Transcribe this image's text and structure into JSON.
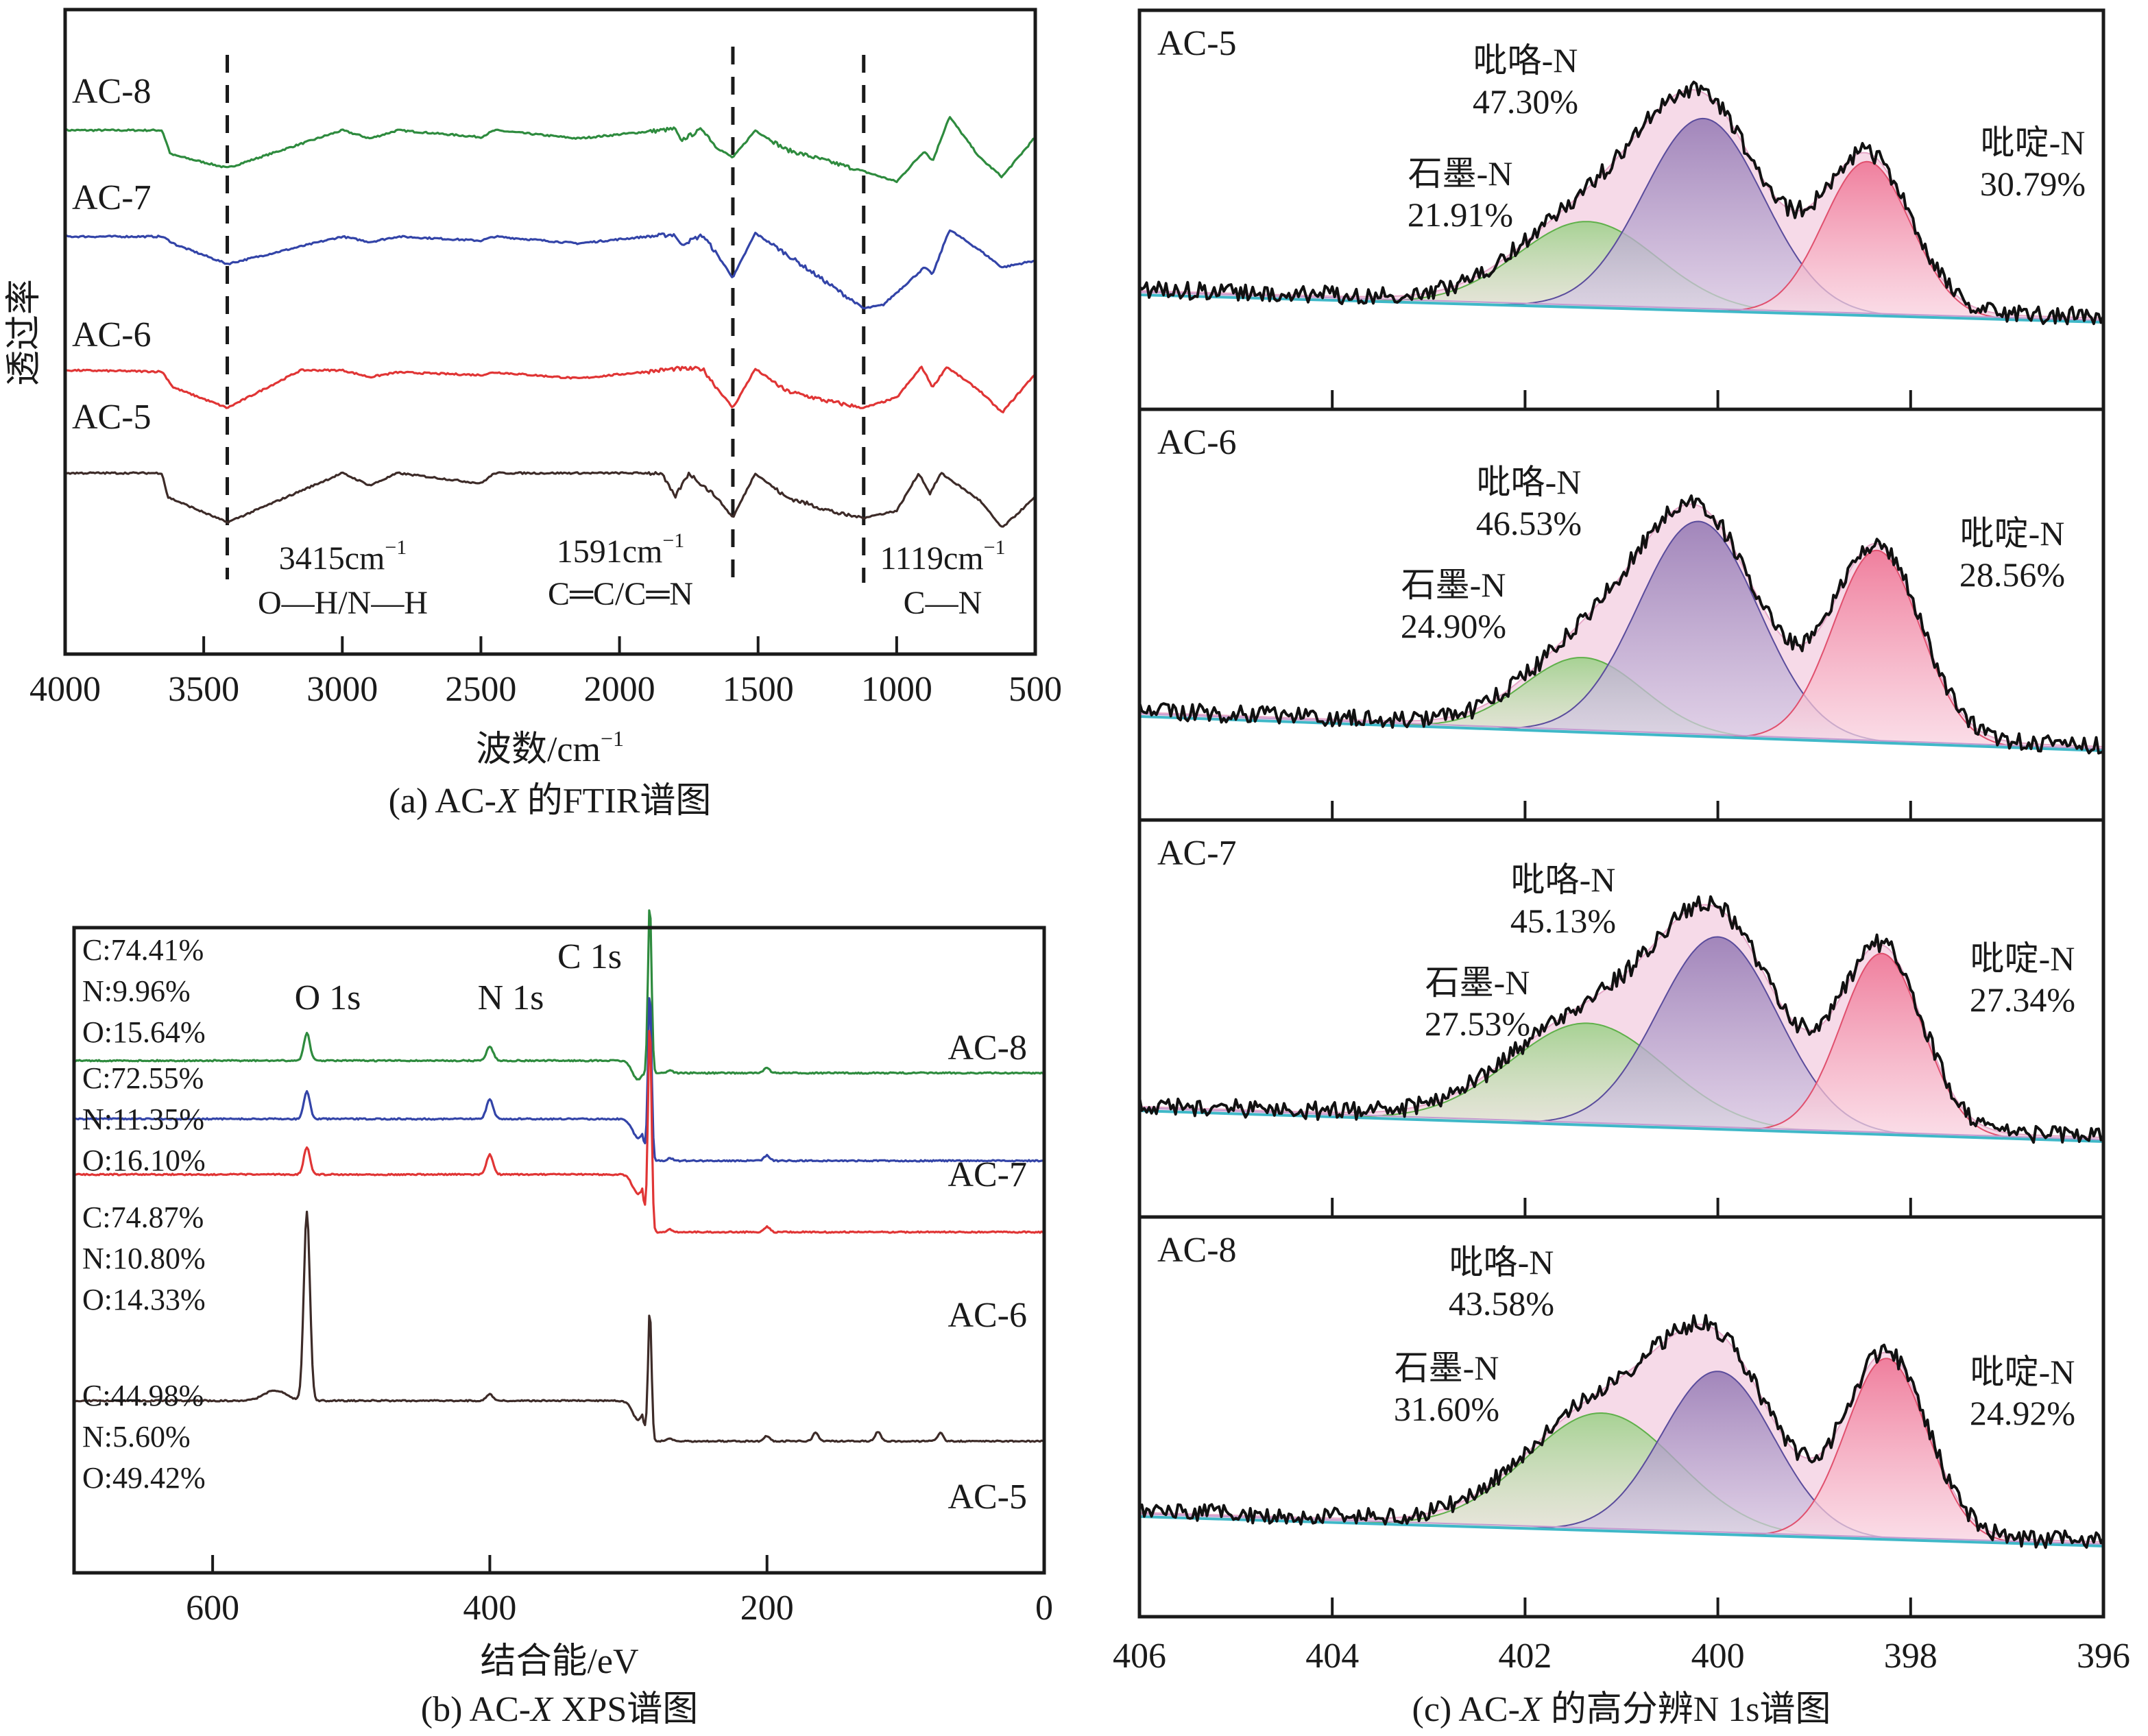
{
  "chart_data": [
    {
      "id": "ftir",
      "type": "line",
      "title": "(a) AC-X 的FTIR谱图",
      "caption_prefix": "(a) AC-",
      "caption_italic": "X",
      "caption_suffix": " 的FTIR谱图",
      "xlabel": "波数/cm",
      "xlabel_sup": "−1",
      "ylabel": "透过率",
      "xlim": [
        4000,
        500
      ],
      "xticks": [
        4000,
        3500,
        3000,
        2500,
        2000,
        1500,
        1000,
        500
      ],
      "grid": false,
      "annotations": [
        {
          "x": 3415,
          "label": "3415cm",
          "sup": "−1",
          "bond": "O—H/N—H"
        },
        {
          "x": 1591,
          "label": "1591cm",
          "sup": "−1",
          "bond": "C═C/C═N"
        },
        {
          "x": 1119,
          "label": "1119cm",
          "sup": "−1",
          "bond": "C—N"
        }
      ],
      "series": [
        {
          "name": "AC-8",
          "color": "#2e8b3e",
          "offset": 3.0,
          "points": [
            [
              4000,
              0
            ],
            [
              3650,
              0
            ],
            [
              3620,
              -0.35
            ],
            [
              3415,
              -0.55
            ],
            [
              3000,
              0
            ],
            [
              2900,
              -0.12
            ],
            [
              2800,
              0
            ],
            [
              2500,
              -0.1
            ],
            [
              2450,
              0
            ],
            [
              2150,
              -0.12
            ],
            [
              1900,
              -0.02
            ],
            [
              1800,
              0.02
            ],
            [
              1780,
              -0.15
            ],
            [
              1700,
              0.02
            ],
            [
              1650,
              -0.25
            ],
            [
              1591,
              -0.4
            ],
            [
              1510,
              0.0
            ],
            [
              1400,
              -0.28
            ],
            [
              1250,
              -0.45
            ],
            [
              1119,
              -0.6
            ],
            [
              1000,
              -0.75
            ],
            [
              900,
              -0.3
            ],
            [
              870,
              -0.45
            ],
            [
              810,
              0.2
            ],
            [
              700,
              -0.4
            ],
            [
              620,
              -0.68
            ],
            [
              500,
              -0.1
            ]
          ]
        },
        {
          "name": "AC-7",
          "color": "#3344a8",
          "offset": 2.0,
          "points": [
            [
              4000,
              0
            ],
            [
              3650,
              0
            ],
            [
              3600,
              -0.12
            ],
            [
              3415,
              -0.4
            ],
            [
              3000,
              0
            ],
            [
              2900,
              -0.08
            ],
            [
              2800,
              0
            ],
            [
              2500,
              -0.06
            ],
            [
              2450,
              0
            ],
            [
              2150,
              -0.1
            ],
            [
              1900,
              0
            ],
            [
              1800,
              0.03
            ],
            [
              1780,
              -0.12
            ],
            [
              1700,
              0.02
            ],
            [
              1650,
              -0.25
            ],
            [
              1591,
              -0.6
            ],
            [
              1510,
              0.05
            ],
            [
              1400,
              -0.25
            ],
            [
              1119,
              -1.05
            ],
            [
              1050,
              -1.0
            ],
            [
              900,
              -0.45
            ],
            [
              870,
              -0.55
            ],
            [
              810,
              0.1
            ],
            [
              700,
              -0.2
            ],
            [
              620,
              -0.45
            ],
            [
              500,
              -0.35
            ]
          ]
        },
        {
          "name": "AC-6",
          "color": "#e03535",
          "offset": 1.0,
          "points": [
            [
              4000,
              0
            ],
            [
              3650,
              -0.02
            ],
            [
              3610,
              -0.25
            ],
            [
              3415,
              -0.55
            ],
            [
              3150,
              0
            ],
            [
              3000,
              0
            ],
            [
              2900,
              -0.1
            ],
            [
              2800,
              -0.03
            ],
            [
              2500,
              -0.07
            ],
            [
              2450,
              -0.03
            ],
            [
              2150,
              -0.12
            ],
            [
              1900,
              -0.02
            ],
            [
              1800,
              0.02
            ],
            [
              1700,
              0.02
            ],
            [
              1650,
              -0.25
            ],
            [
              1591,
              -0.55
            ],
            [
              1510,
              0.02
            ],
            [
              1400,
              -0.3
            ],
            [
              1250,
              -0.45
            ],
            [
              1119,
              -0.55
            ],
            [
              1000,
              -0.4
            ],
            [
              910,
              0.05
            ],
            [
              870,
              -0.25
            ],
            [
              820,
              0.05
            ],
            [
              700,
              -0.3
            ],
            [
              620,
              -0.62
            ],
            [
              500,
              -0.05
            ]
          ]
        },
        {
          "name": "AC-5",
          "color": "#3d2b28",
          "offset": 0.0,
          "points": [
            [
              4000,
              0
            ],
            [
              3650,
              0
            ],
            [
              3630,
              -0.35
            ],
            [
              3415,
              -0.72
            ],
            [
              3000,
              0
            ],
            [
              2900,
              -0.18
            ],
            [
              2800,
              0
            ],
            [
              2500,
              -0.15
            ],
            [
              2450,
              0
            ],
            [
              2000,
              0
            ],
            [
              1850,
              0
            ],
            [
              1800,
              -0.35
            ],
            [
              1750,
              0
            ],
            [
              1650,
              -0.35
            ],
            [
              1591,
              -0.65
            ],
            [
              1510,
              0.0
            ],
            [
              1400,
              -0.35
            ],
            [
              1200,
              -0.6
            ],
            [
              1119,
              -0.65
            ],
            [
              1000,
              -0.55
            ],
            [
              920,
              0.0
            ],
            [
              880,
              -0.3
            ],
            [
              840,
              0.0
            ],
            [
              700,
              -0.4
            ],
            [
              620,
              -0.8
            ],
            [
              500,
              -0.35
            ]
          ]
        }
      ]
    },
    {
      "id": "xps",
      "type": "line",
      "title": "(b) AC-X XPS谱图",
      "caption_prefix": "(b) AC-",
      "caption_italic": "X",
      "caption_suffix": " XPS谱图",
      "xlabel": "结合能/eV",
      "xlim": [
        700,
        0
      ],
      "xticks": [
        600,
        400,
        200,
        0
      ],
      "grid": false,
      "peak_labels": [
        {
          "text": "O 1s",
          "x": 532
        },
        {
          "text": "N 1s",
          "x": 400
        },
        {
          "text": "C 1s",
          "x": 284.6
        }
      ],
      "series": [
        {
          "name": "AC-8",
          "color": "#2e8b3e",
          "composition": [
            "C:74.41%",
            "N:9.96%",
            "O:15.64%"
          ],
          "o1s": 0.35,
          "n1s": 0.18,
          "c1s": 2.2,
          "pre": 0.45,
          "post": 0.0
        },
        {
          "name": "AC-7",
          "color": "#3344a8",
          "composition": [
            "C:72.55%",
            "N:11.35%",
            "O:16.10%"
          ],
          "o1s": 0.35,
          "n1s": 0.25,
          "c1s": 2.2,
          "pre": 0.5,
          "post": 0.0
        },
        {
          "name": "AC-6",
          "color": "#e03535",
          "composition": [
            "C:74.87%",
            "N:10.80%",
            "O:14.33%"
          ],
          "o1s": 0.35,
          "n1s": 0.25,
          "c1s": 2.7,
          "pre": 0.5,
          "post": 0.0
        },
        {
          "name": "AC-5",
          "color": "#3d2b28",
          "composition": [
            "C:44.98%",
            "N:5.60%",
            "O:49.42%"
          ],
          "o1s": 2.4,
          "n1s": 0.08,
          "c1s": 1.7,
          "pre": 0.55,
          "post": 0.0
        }
      ]
    },
    {
      "id": "n1s",
      "type": "area",
      "title": "(c) AC-X 的高分辨N 1s谱图",
      "caption_prefix": "(c) AC-",
      "caption_italic": "X",
      "caption_suffix": " 的高分辨N 1s谱图",
      "xlim": [
        406,
        396
      ],
      "xticks": [
        406,
        404,
        402,
        400,
        398,
        396
      ],
      "grid": false,
      "component_colors": {
        "graphitic": "#8fcf7a",
        "pyrrolic": "#8e72b0",
        "pyridinic": "#ee6a8c",
        "envelope": "#f3c6dc"
      },
      "samples": [
        {
          "name": "AC-5",
          "components": [
            {
              "label": "石墨-N",
              "percent": "21.91%",
              "center": 401.35,
              "height": 0.38,
              "width": 0.72
            },
            {
              "label": "吡咯-N",
              "percent": "47.30%",
              "center": 400.15,
              "height": 0.85,
              "width": 0.62
            },
            {
              "label": "吡啶-N",
              "percent": "30.79%",
              "center": 398.45,
              "height": 0.68,
              "width": 0.45
            }
          ]
        },
        {
          "name": "AC-6",
          "components": [
            {
              "label": "石墨-N",
              "percent": "24.90%",
              "center": 401.4,
              "height": 0.33,
              "width": 0.62
            },
            {
              "label": "吡咯-N",
              "percent": "46.53%",
              "center": 400.2,
              "height": 0.95,
              "width": 0.62
            },
            {
              "label": "吡啶-N",
              "percent": "28.56%",
              "center": 398.35,
              "height": 0.85,
              "width": 0.45
            }
          ]
        },
        {
          "name": "AC-7",
          "components": [
            {
              "label": "石墨-N",
              "percent": "27.53%",
              "center": 401.35,
              "height": 0.45,
              "width": 0.8
            },
            {
              "label": "吡咯-N",
              "percent": "45.13%",
              "center": 400.0,
              "height": 0.85,
              "width": 0.62
            },
            {
              "label": "吡啶-N",
              "percent": "27.34%",
              "center": 398.3,
              "height": 0.8,
              "width": 0.42
            }
          ]
        },
        {
          "name": "AC-8",
          "components": [
            {
              "label": "石墨-N",
              "percent": "31.60%",
              "center": 401.2,
              "height": 0.52,
              "width": 0.78
            },
            {
              "label": "吡咯-N",
              "percent": "43.58%",
              "center": 400.0,
              "height": 0.72,
              "width": 0.58
            },
            {
              "label": "吡啶-N",
              "percent": "24.92%",
              "center": 398.25,
              "height": 0.8,
              "width": 0.42
            }
          ]
        }
      ]
    }
  ]
}
